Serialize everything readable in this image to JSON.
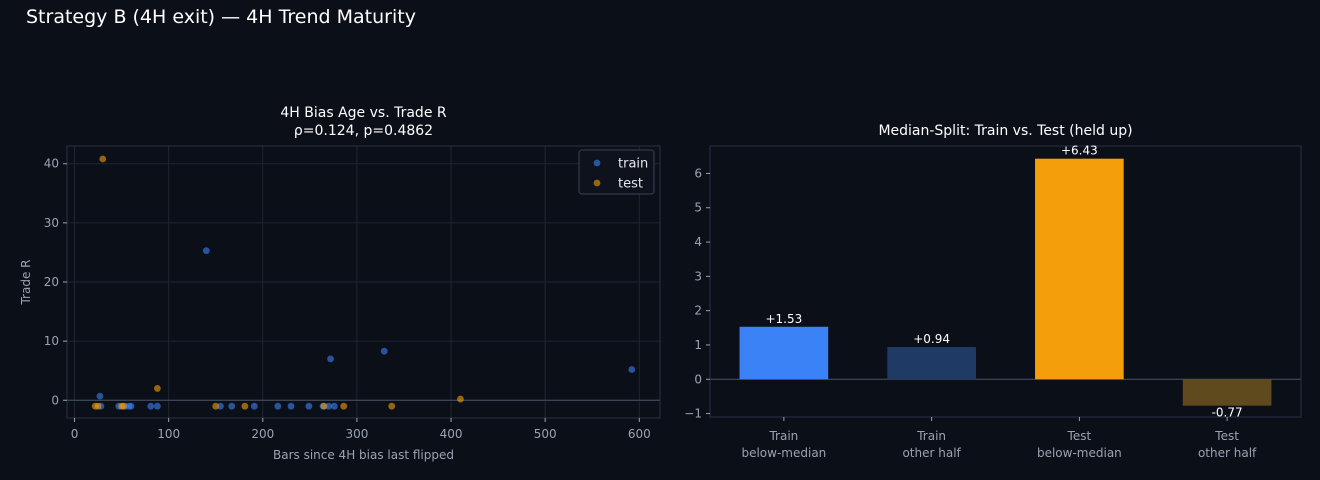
{
  "figure": {
    "title": "Strategy B (4H exit) — 4H Trend Maturity",
    "colors": {
      "background": "#0b0f18",
      "axes_face": "#0b0f18",
      "grid": "#1f2533",
      "spine": "#2a3142",
      "tick_label": "#9aa3b2",
      "title_text": "#ffffff",
      "train": "#3b82f6",
      "test": "#f59e0b",
      "train_dim": "#1f3a64",
      "test_dim": "#5e4a1c"
    }
  },
  "chart_data": [
    {
      "type": "scatter",
      "title": "4H Bias Age vs. Trade R",
      "subtitle": "ρ=0.124, p=0.4862",
      "xlabel": "Bars since 4H bias last flipped",
      "ylabel": "Trade R",
      "xlim": [
        -8,
        622
      ],
      "ylim": [
        -3,
        43
      ],
      "xticks": [
        0,
        100,
        200,
        300,
        400,
        500,
        600
      ],
      "yticks": [
        0,
        10,
        20,
        30,
        40
      ],
      "grid": true,
      "zero_line": true,
      "legend": {
        "position": "top-right",
        "entries": [
          "train",
          "test"
        ]
      },
      "series": [
        {
          "name": "train",
          "color": "#3b82f6",
          "points": [
            [
              27,
              0.7
            ],
            [
              28,
              -1
            ],
            [
              47,
              -1
            ],
            [
              54,
              -1
            ],
            [
              58,
              -1
            ],
            [
              60,
              -1
            ],
            [
              81,
              -1
            ],
            [
              88,
              -1
            ],
            [
              140,
              25.3
            ],
            [
              155,
              -1
            ],
            [
              167,
              -1
            ],
            [
              191,
              -1
            ],
            [
              216,
              -1
            ],
            [
              230,
              -1
            ],
            [
              249,
              -1
            ],
            [
              264,
              -1
            ],
            [
              270,
              -1
            ],
            [
              272,
              7
            ],
            [
              276,
              -1
            ],
            [
              329,
              8.3
            ],
            [
              592,
              5.2
            ]
          ]
        },
        {
          "name": "test",
          "color": "#f59e0b",
          "points": [
            [
              22,
              -1
            ],
            [
              25,
              -1
            ],
            [
              30,
              40.8
            ],
            [
              50,
              -1
            ],
            [
              52,
              -1
            ],
            [
              88,
              2
            ],
            [
              150,
              -1
            ],
            [
              181,
              -1
            ],
            [
              265,
              -1
            ],
            [
              286,
              -1
            ],
            [
              337,
              -1
            ],
            [
              410,
              0.2
            ]
          ]
        }
      ]
    },
    {
      "type": "bar",
      "title": "Median-Split: Train vs. Test (held up)",
      "categories": [
        "Train\nbelow-median",
        "Train\nother half",
        "Test\nbelow-median",
        "Test\nother half"
      ],
      "values": [
        1.53,
        0.94,
        6.43,
        -0.77
      ],
      "value_labels": [
        "+1.53",
        "+0.94",
        "+6.43",
        "-0.77"
      ],
      "bar_colors": [
        "#3b82f6",
        "#1f3a64",
        "#f59e0b",
        "#5e4a1c"
      ],
      "ylim": [
        -1.1,
        6.8
      ],
      "yticks": [
        -1,
        0,
        1,
        2,
        3,
        4,
        5,
        6
      ],
      "grid": false,
      "zero_line": true
    }
  ]
}
